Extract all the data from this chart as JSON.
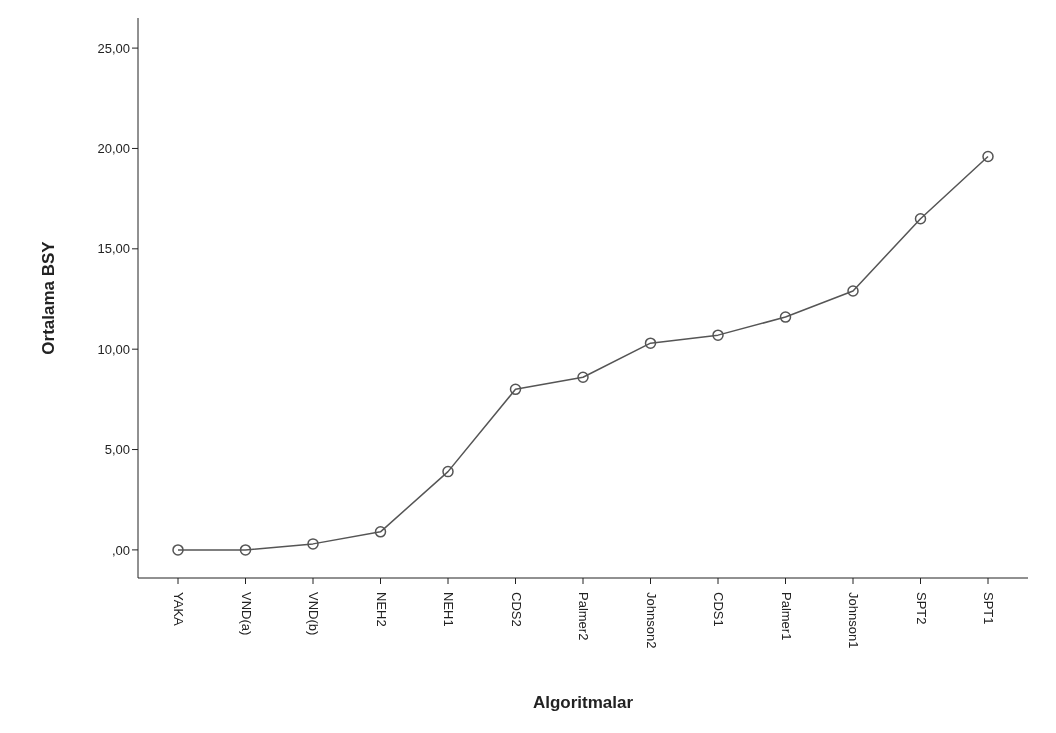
{
  "chart_data": {
    "type": "line",
    "xlabel": "Algoritmalar",
    "ylabel": "Ortalama BSY",
    "categories": [
      "YAKA",
      "VND(a)",
      "VND(b)",
      "NEH2",
      "NEH1",
      "CDS2",
      "Palmer2",
      "Johnson2",
      "CDS1",
      "Palmer1",
      "Johnson1",
      "SPT2",
      "SPT1"
    ],
    "values": [
      0,
      0,
      0.3,
      0.9,
      3.9,
      8.0,
      8.6,
      10.3,
      10.7,
      11.6,
      12.9,
      16.5,
      19.6
    ],
    "color": "#555555",
    "marker": "circle",
    "grid": false,
    "ylim": [
      -1.4,
      26.5
    ],
    "yticks": [
      {
        "value": 0,
        "label": ",00"
      },
      {
        "value": 5,
        "label": "5,00"
      },
      {
        "value": 10,
        "label": "10,00"
      },
      {
        "value": 15,
        "label": "15,00"
      },
      {
        "value": 20,
        "label": "20,00"
      },
      {
        "value": 25,
        "label": "25,00"
      }
    ]
  }
}
